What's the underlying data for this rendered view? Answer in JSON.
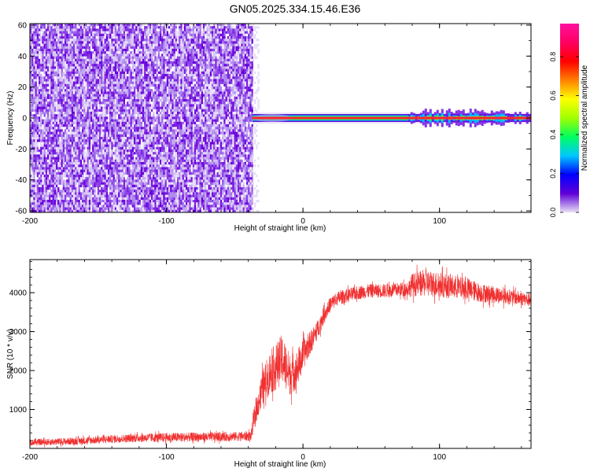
{
  "figure": {
    "title": "GN05.2025.334.15.46.E36"
  },
  "chart_data": [
    {
      "type": "heatmap",
      "xlabel": "Height of straight line (km)",
      "ylabel": "Frequency (Hz)",
      "xlim": [
        -200,
        167
      ],
      "ylim": [
        -61,
        61
      ],
      "x_ticks": [
        -200,
        -100,
        0,
        100
      ],
      "x_tick_labels": [
        "-200",
        "-100",
        "0",
        "100"
      ],
      "y_ticks": [
        -60,
        -40,
        -20,
        0,
        20,
        40,
        60
      ],
      "y_tick_labels": [
        "-60",
        "-40",
        "-20",
        "0",
        "20",
        "40",
        "60"
      ],
      "noise_region_x": [
        -200,
        -37
      ],
      "signal_band": {
        "x_start": -37,
        "x_end": 167,
        "frequency": 0
      },
      "signal_enhanced_x": [
        77,
        167
      ],
      "colorbar": {
        "label": "Normalized spectral amplitude",
        "range": [
          0,
          0.97
        ],
        "ticks": [
          0.0,
          0.2,
          0.4,
          0.6,
          0.8
        ],
        "tick_labels": [
          "0.0",
          "0.2",
          "0.4",
          "0.6",
          "0.8"
        ],
        "colormap": [
          "#e7e0f5",
          "#6000d8",
          "#0000ff",
          "#00c8ff",
          "#00ff60",
          "#a0ff00",
          "#ffff00",
          "#ff8000",
          "#ff0000",
          "#ff0060",
          "#ff10a0"
        ]
      },
      "grid": false
    },
    {
      "type": "line",
      "xlabel": "Height of straight line (km)",
      "ylabel": "SNR (10 * v/v)",
      "xlim": [
        -200,
        167
      ],
      "ylim": [
        0,
        4850
      ],
      "x_ticks": [
        -200,
        -100,
        0,
        100
      ],
      "x_tick_labels": [
        "-200",
        "-100",
        "0",
        "100"
      ],
      "y_ticks": [
        1000,
        2000,
        3000,
        4000
      ],
      "y_tick_labels": [
        "1000",
        "2000",
        "3000",
        "4000"
      ],
      "color": "#f03030",
      "grid": false,
      "series": [
        {
          "x": [
            -200,
            -180,
            -160,
            -140,
            -120,
            -100,
            -80,
            -60,
            -45,
            -38,
            -35,
            -30,
            -25,
            -20,
            -15,
            -10,
            -5,
            0,
            5,
            10,
            15,
            20,
            25,
            30,
            40,
            50,
            60,
            70,
            77,
            80,
            90,
            100,
            110,
            120,
            130,
            140,
            150,
            160,
            167
          ],
          "y": [
            150,
            170,
            200,
            240,
            270,
            280,
            290,
            300,
            310,
            320,
            900,
            1500,
            1900,
            2100,
            2300,
            1900,
            2000,
            2400,
            2700,
            3000,
            3400,
            3700,
            3850,
            3900,
            4000,
            4050,
            4050,
            4080,
            4100,
            4200,
            4250,
            4200,
            4150,
            4100,
            4000,
            3950,
            3900,
            3850,
            3800
          ],
          "spread": [
            80,
            90,
            100,
            100,
            110,
            120,
            120,
            120,
            120,
            130,
            300,
            450,
            550,
            600,
            650,
            550,
            500,
            400,
            300,
            250,
            220,
            200,
            180,
            180,
            180,
            180,
            180,
            180,
            200,
            300,
            350,
            330,
            300,
            280,
            250,
            220,
            200,
            180,
            170
          ]
        }
      ]
    }
  ]
}
